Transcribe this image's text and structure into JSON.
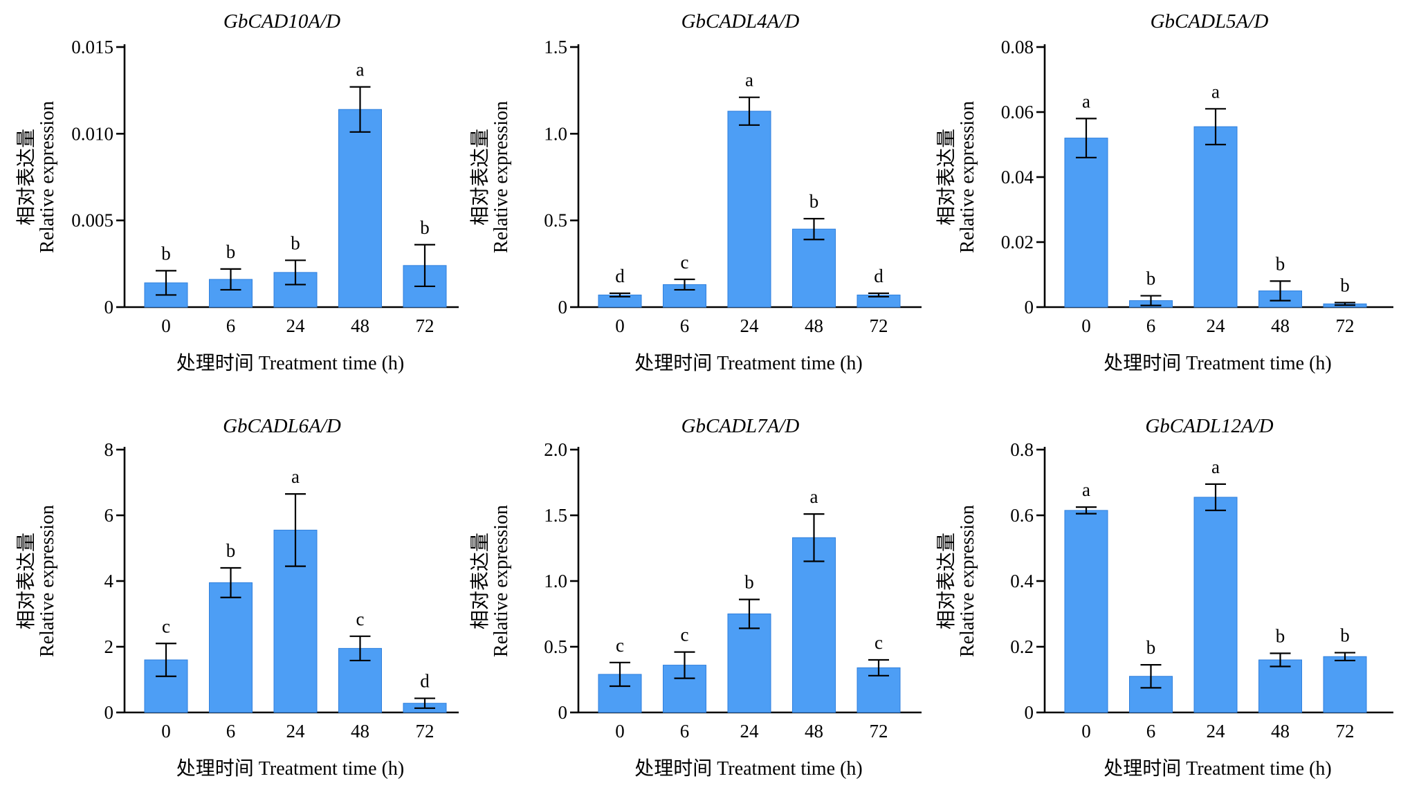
{
  "figure": {
    "x_axis_label": "处理时间 Treatment time (h)",
    "y_axis_label_cn": "相对表达量",
    "y_axis_label_en": "Relative expression",
    "bar_color": "#4d9ef5"
  },
  "chart_data": [
    {
      "type": "bar",
      "title": "GbCAD10A/D",
      "xlabel": "处理时间 Treatment time (h)",
      "ylabel": "相对表达量 Relative expression",
      "categories": [
        "0",
        "6",
        "24",
        "48",
        "72"
      ],
      "values": [
        0.0014,
        0.0016,
        0.002,
        0.0114,
        0.0024
      ],
      "errors": [
        0.0007,
        0.0006,
        0.0007,
        0.0013,
        0.0012
      ],
      "significance": [
        "b",
        "b",
        "b",
        "a",
        "b"
      ],
      "ylim": [
        0,
        0.015
      ],
      "yticks": [
        0,
        0.005,
        0.01,
        0.015
      ],
      "ytick_labels": [
        "0",
        "0.005",
        "0.010",
        "0.015"
      ]
    },
    {
      "type": "bar",
      "title": "GbCADL4A/D",
      "xlabel": "处理时间 Treatment time (h)",
      "ylabel": "相对表达量 Relative expression",
      "categories": [
        "0",
        "6",
        "24",
        "48",
        "72"
      ],
      "values": [
        0.07,
        0.13,
        1.13,
        0.45,
        0.07
      ],
      "errors": [
        0.01,
        0.03,
        0.08,
        0.06,
        0.01
      ],
      "significance": [
        "d",
        "c",
        "a",
        "b",
        "d"
      ],
      "ylim": [
        0,
        1.5
      ],
      "yticks": [
        0,
        0.5,
        1.0,
        1.5
      ],
      "ytick_labels": [
        "0",
        "0.5",
        "1.0",
        "1.5"
      ]
    },
    {
      "type": "bar",
      "title": "GbCADL5A/D",
      "xlabel": "处理时间 Treatment time (h)",
      "ylabel": "相对表达量 Relative expression",
      "categories": [
        "0",
        "6",
        "24",
        "48",
        "72"
      ],
      "values": [
        0.052,
        0.002,
        0.0555,
        0.005,
        0.001
      ],
      "errors": [
        0.006,
        0.0015,
        0.0055,
        0.003,
        0.0004
      ],
      "significance": [
        "a",
        "b",
        "a",
        "b",
        "b"
      ],
      "ylim": [
        0,
        0.08
      ],
      "yticks": [
        0,
        0.02,
        0.04,
        0.06,
        0.08
      ],
      "ytick_labels": [
        "0",
        "0.02",
        "0.04",
        "0.06",
        "0.08"
      ]
    },
    {
      "type": "bar",
      "title": "GbCADL6A/D",
      "xlabel": "处理时间 Treatment time (h)",
      "ylabel": "相对表达量 Relative expression",
      "categories": [
        "0",
        "6",
        "24",
        "48",
        "72"
      ],
      "values": [
        1.6,
        3.95,
        5.55,
        1.95,
        0.28
      ],
      "errors": [
        0.5,
        0.45,
        1.1,
        0.37,
        0.15
      ],
      "significance": [
        "c",
        "b",
        "a",
        "c",
        "d"
      ],
      "ylim": [
        0,
        8
      ],
      "yticks": [
        0,
        2,
        4,
        6,
        8
      ],
      "ytick_labels": [
        "0",
        "2",
        "4",
        "6",
        "8"
      ]
    },
    {
      "type": "bar",
      "title": "GbCADL7A/D",
      "xlabel": "处理时间 Treatment time (h)",
      "ylabel": "相对表达量 Relative expression",
      "categories": [
        "0",
        "6",
        "24",
        "48",
        "72"
      ],
      "values": [
        0.29,
        0.36,
        0.75,
        1.33,
        0.34
      ],
      "errors": [
        0.09,
        0.1,
        0.11,
        0.18,
        0.06
      ],
      "significance": [
        "c",
        "c",
        "b",
        "a",
        "c"
      ],
      "ylim": [
        0,
        2.0
      ],
      "yticks": [
        0,
        0.5,
        1.0,
        1.5,
        2.0
      ],
      "ytick_labels": [
        "0",
        "0.5",
        "1.0",
        "1.5",
        "2.0"
      ]
    },
    {
      "type": "bar",
      "title": "GbCADL12A/D",
      "xlabel": "处理时间 Treatment time (h)",
      "ylabel": "相对表达量 Relative expression",
      "categories": [
        "0",
        "6",
        "24",
        "48",
        "72"
      ],
      "values": [
        0.615,
        0.11,
        0.655,
        0.16,
        0.17
      ],
      "errors": [
        0.01,
        0.035,
        0.04,
        0.02,
        0.012
      ],
      "significance": [
        "a",
        "b",
        "a",
        "b",
        "b"
      ],
      "ylim": [
        0,
        0.8
      ],
      "yticks": [
        0,
        0.2,
        0.4,
        0.6,
        0.8
      ],
      "ytick_labels": [
        "0",
        "0.2",
        "0.4",
        "0.6",
        "0.8"
      ]
    }
  ]
}
